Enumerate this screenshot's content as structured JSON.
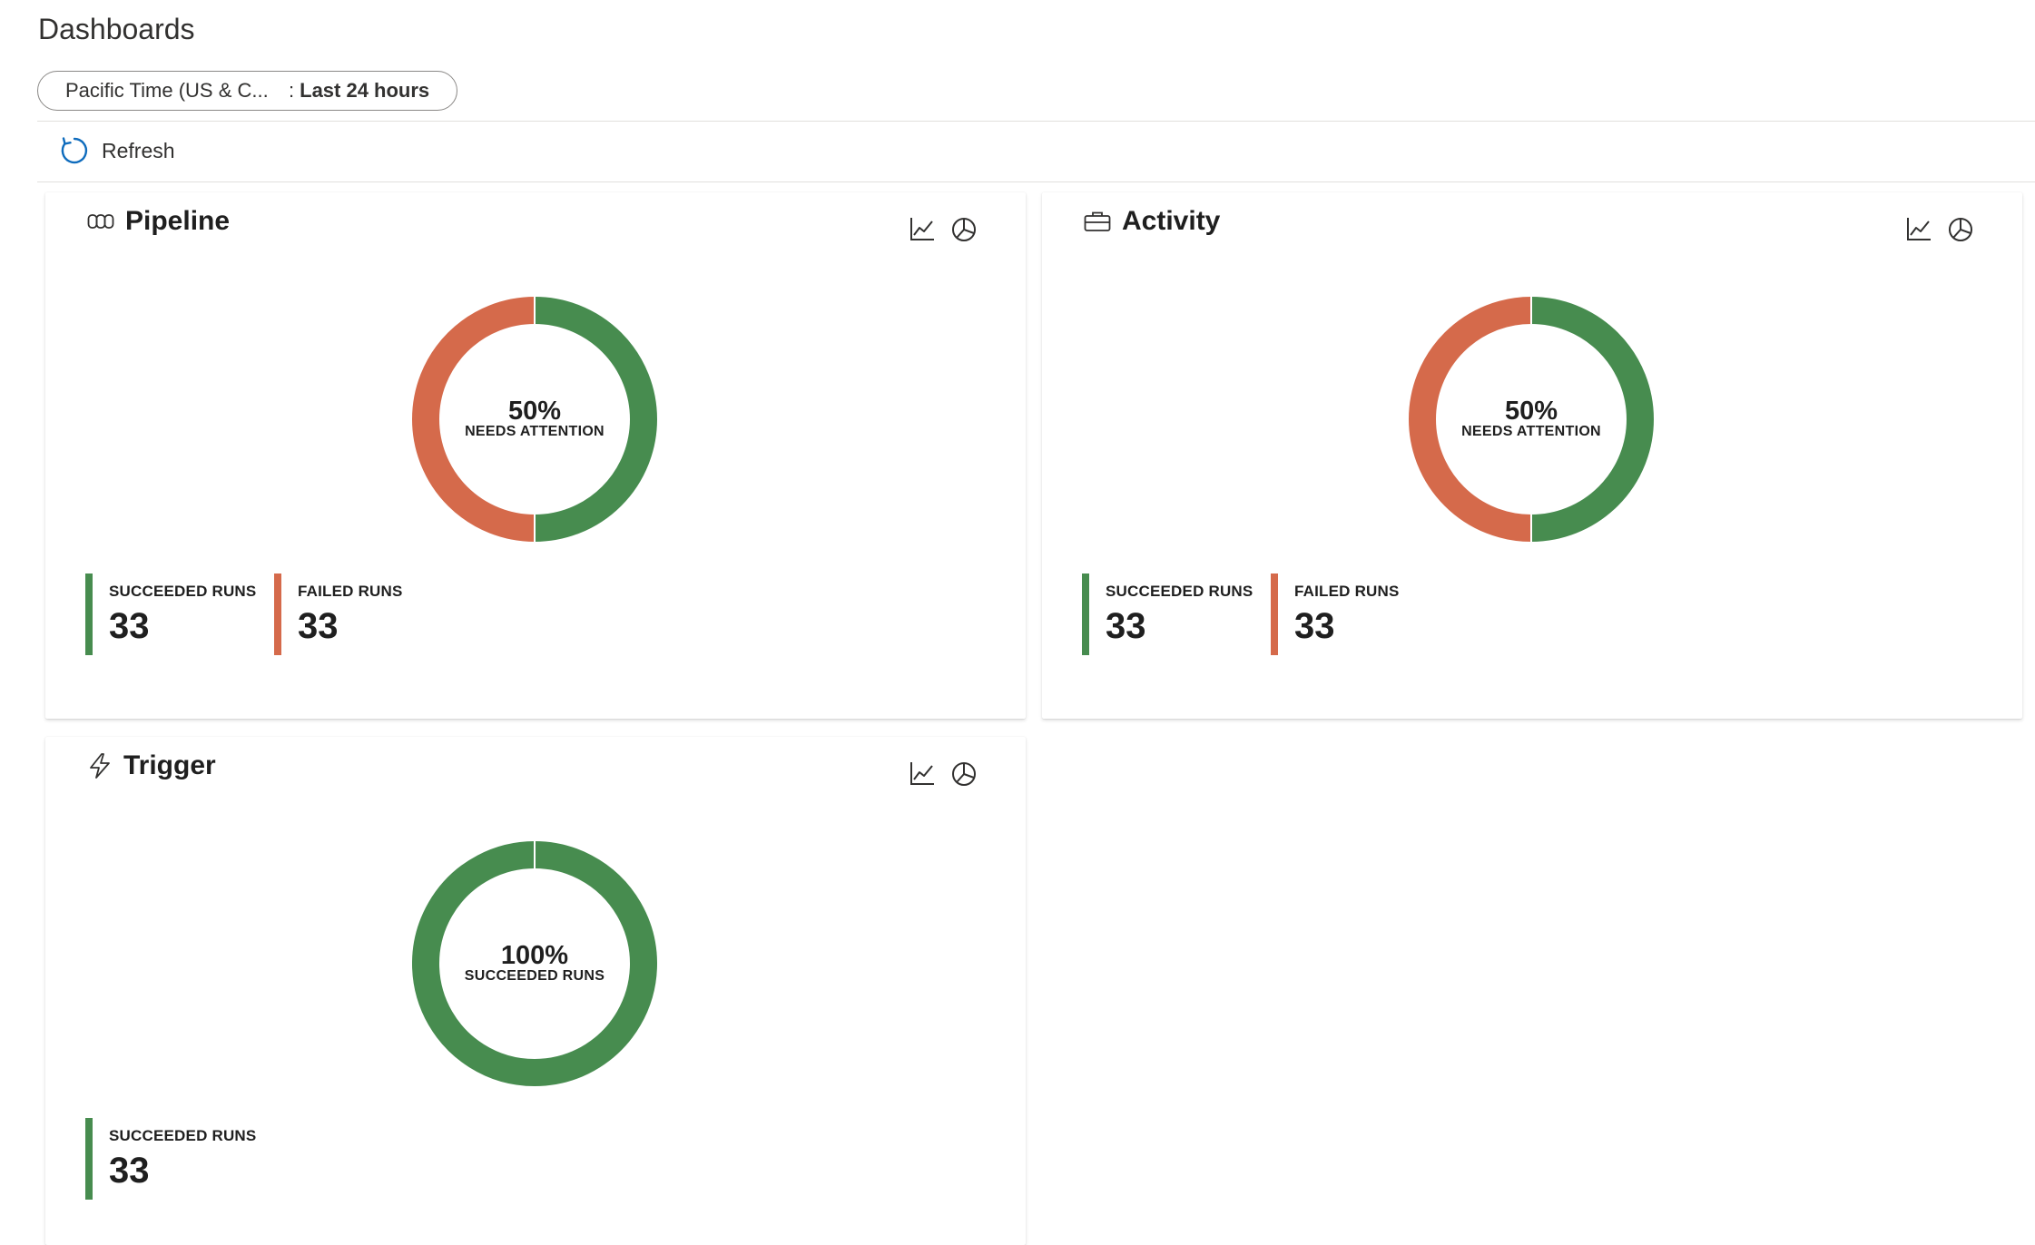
{
  "page": {
    "title": "Dashboards"
  },
  "filter": {
    "timezone": "Pacific Time (US & C...",
    "separator": ":",
    "range": "Last 24 hours"
  },
  "toolbar": {
    "refresh_label": "Refresh"
  },
  "colors": {
    "succeeded": "#478c4f",
    "failed": "#d56a4b",
    "accent": "#0f6cbd"
  },
  "cards": {
    "pipeline": {
      "title": "Pipeline",
      "icon": "pipeline-icon",
      "donut": {
        "percent_label": "50%",
        "caption": "NEEDS ATTENTION",
        "succeeded_fraction": 0.5,
        "failed_fraction": 0.5
      },
      "stats": [
        {
          "label": "SUCCEEDED RUNS",
          "value": "33",
          "kind": "succeeded"
        },
        {
          "label": "FAILED RUNS",
          "value": "33",
          "kind": "failed"
        }
      ]
    },
    "activity": {
      "title": "Activity",
      "icon": "briefcase-icon",
      "donut": {
        "percent_label": "50%",
        "caption": "NEEDS ATTENTION",
        "succeeded_fraction": 0.5,
        "failed_fraction": 0.5
      },
      "stats": [
        {
          "label": "SUCCEEDED RUNS",
          "value": "33",
          "kind": "succeeded"
        },
        {
          "label": "FAILED RUNS",
          "value": "33",
          "kind": "failed"
        }
      ]
    },
    "trigger": {
      "title": "Trigger",
      "icon": "lightning-icon",
      "donut": {
        "percent_label": "100%",
        "caption": "SUCCEEDED RUNS",
        "succeeded_fraction": 1.0,
        "failed_fraction": 0.0
      },
      "stats": [
        {
          "label": "SUCCEEDED RUNS",
          "value": "33",
          "kind": "succeeded"
        }
      ]
    }
  }
}
